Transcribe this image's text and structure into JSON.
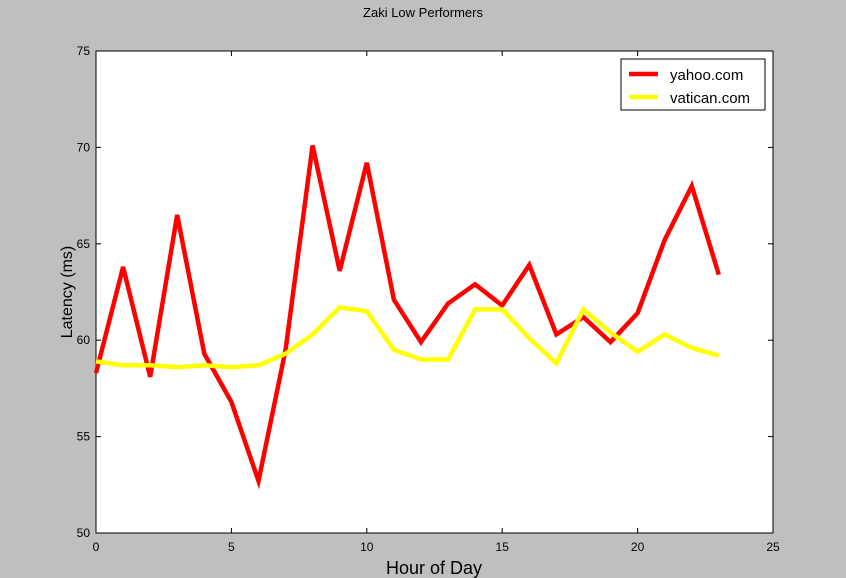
{
  "chart_data": {
    "type": "line",
    "title": "Zaki Low Performers",
    "xlabel": "Hour of Day",
    "ylabel": "Latency (ms)",
    "xlim": [
      0,
      25
    ],
    "ylim": [
      50,
      75
    ],
    "xticks": [
      0,
      5,
      10,
      15,
      20,
      25
    ],
    "yticks": [
      50,
      55,
      60,
      65,
      70,
      75
    ],
    "grid": false,
    "legend_position": "top-right",
    "x": [
      0,
      1,
      2,
      3,
      4,
      5,
      6,
      7,
      8,
      9,
      10,
      11,
      12,
      13,
      14,
      15,
      16,
      17,
      18,
      19,
      20,
      21,
      22,
      23
    ],
    "series": [
      {
        "name": "yahoo.com",
        "color": "#ff0000",
        "values": [
          58.3,
          63.8,
          58.1,
          66.5,
          59.3,
          56.8,
          52.7,
          59.5,
          70.1,
          63.6,
          69.2,
          62.1,
          59.9,
          61.9,
          62.9,
          61.8,
          63.9,
          60.3,
          61.2,
          59.9,
          61.4,
          65.2,
          68.0,
          63.4
        ]
      },
      {
        "name": "vatican.com",
        "color": "#ffff00",
        "values": [
          58.9,
          58.7,
          58.7,
          58.6,
          58.7,
          58.6,
          58.7,
          59.3,
          60.3,
          61.7,
          61.5,
          59.5,
          59.0,
          59.0,
          61.6,
          61.6,
          60.1,
          58.8,
          61.6,
          60.4,
          59.4,
          60.3,
          59.6,
          59.2
        ]
      }
    ]
  }
}
